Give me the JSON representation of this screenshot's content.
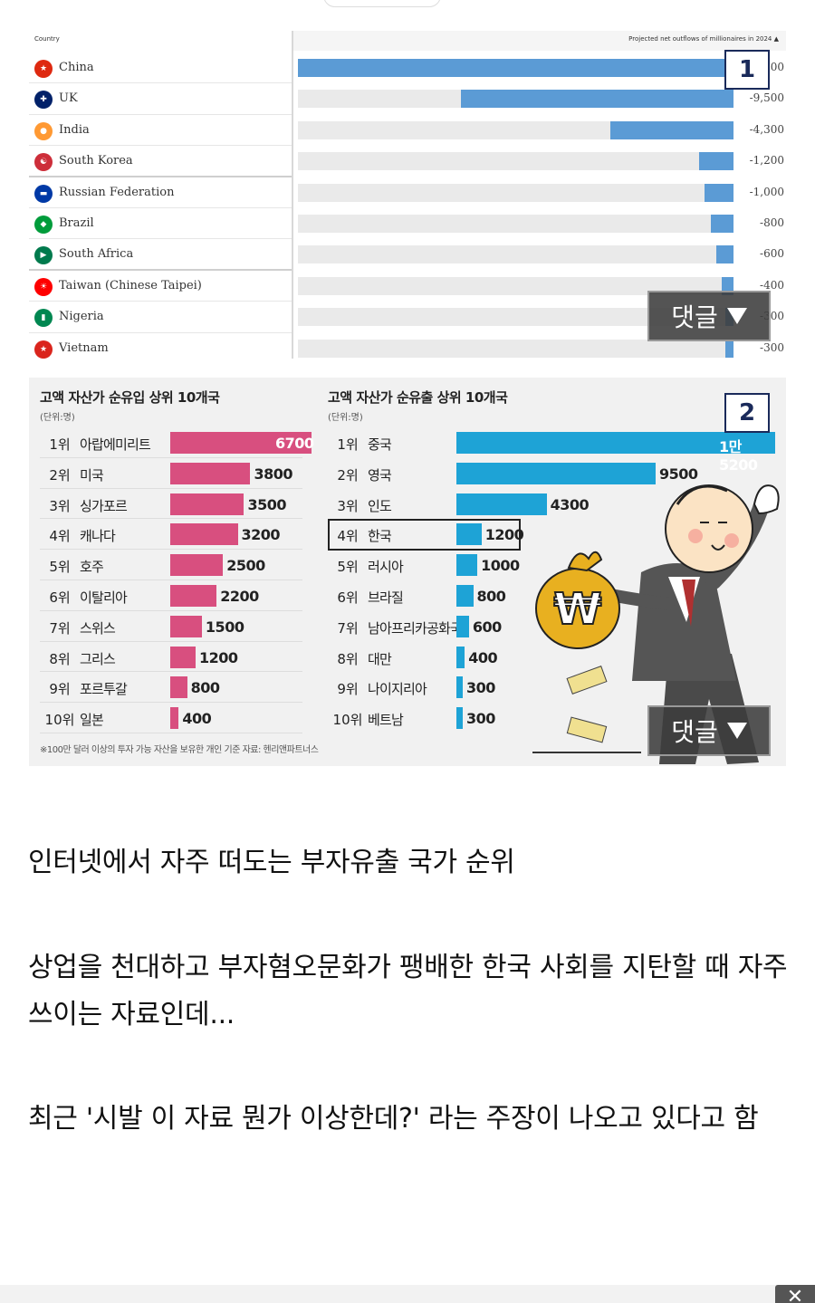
{
  "chart1": {
    "header_country": "Country",
    "header_metric": "Projected net outflows of millionaires in 2024",
    "rows": [
      {
        "country": "China",
        "value": -15200,
        "label": "-15,200",
        "flag_color": "#de2910",
        "flag_glyph": "★"
      },
      {
        "country": "UK",
        "value": -9500,
        "label": "-9,500",
        "flag_color": "#012169",
        "flag_glyph": "✚"
      },
      {
        "country": "India",
        "value": -4300,
        "label": "-4,300",
        "flag_color": "#ff9933",
        "flag_glyph": "●"
      },
      {
        "country": "South Korea",
        "value": -1200,
        "label": "-1,200",
        "flag_color": "#cd2e3a",
        "flag_glyph": "☯"
      },
      {
        "country": "Russian Federation",
        "value": -1000,
        "label": "-1,000",
        "flag_color": "#0039a6",
        "flag_glyph": "▬"
      },
      {
        "country": "Brazil",
        "value": -800,
        "label": "-800",
        "flag_color": "#009c3b",
        "flag_glyph": "◆"
      },
      {
        "country": "South Africa",
        "value": -600,
        "label": "-600",
        "flag_color": "#007a4d",
        "flag_glyph": "▶"
      },
      {
        "country": "Taiwan (Chinese Taipei)",
        "value": -400,
        "label": "-400",
        "flag_color": "#fe0000",
        "flag_glyph": "☀"
      },
      {
        "country": "Nigeria",
        "value": -300,
        "label": "-300",
        "flag_color": "#008751",
        "flag_glyph": "▮"
      },
      {
        "country": "Vietnam",
        "value": -300,
        "label": "-300",
        "flag_color": "#da251d",
        "flag_glyph": "★"
      }
    ]
  },
  "badges": {
    "first": "1",
    "second": "2"
  },
  "comment_button": {
    "label": "댓글"
  },
  "chart2": {
    "inflow_title": "고액 자산가 순유입 상위 10개국",
    "outflow_title": "고액 자산가 순유출 상위 10개국",
    "unit": "(단위:명)",
    "inflow": [
      {
        "rank": "1위",
        "country": "아랍에미리트",
        "value": 6700
      },
      {
        "rank": "2위",
        "country": "미국",
        "value": 3800
      },
      {
        "rank": "3위",
        "country": "싱가포르",
        "value": 3500
      },
      {
        "rank": "4위",
        "country": "캐나다",
        "value": 3200
      },
      {
        "rank": "5위",
        "country": "호주",
        "value": 2500
      },
      {
        "rank": "6위",
        "country": "이탈리아",
        "value": 2200
      },
      {
        "rank": "7위",
        "country": "스위스",
        "value": 1500
      },
      {
        "rank": "8위",
        "country": "그리스",
        "value": 1200
      },
      {
        "rank": "9위",
        "country": "포르투갈",
        "value": 800
      },
      {
        "rank": "10위",
        "country": "일본",
        "value": 400
      }
    ],
    "outflow": [
      {
        "rank": "1위",
        "country": "중국",
        "value": 15200,
        "label": "1만5200"
      },
      {
        "rank": "2위",
        "country": "영국",
        "value": 9500,
        "label": "9500"
      },
      {
        "rank": "3위",
        "country": "인도",
        "value": 4300,
        "label": "4300"
      },
      {
        "rank": "4위",
        "country": "한국",
        "value": 1200,
        "label": "1200",
        "highlight": true
      },
      {
        "rank": "5위",
        "country": "러시아",
        "value": 1000,
        "label": "1000"
      },
      {
        "rank": "6위",
        "country": "브라질",
        "value": 800,
        "label": "800"
      },
      {
        "rank": "7위",
        "country": "남아프리카공화국",
        "value": 600,
        "label": "600"
      },
      {
        "rank": "8위",
        "country": "대만",
        "value": 400,
        "label": "400"
      },
      {
        "rank": "9위",
        "country": "나이지리아",
        "value": 300,
        "label": "300"
      },
      {
        "rank": "10위",
        "country": "베트남",
        "value": 300,
        "label": "300"
      }
    ],
    "footnote": "※100만 달러 이상의 투자 가능 자산을 보유한 개인 기준     자료: 헨리앤파트너스",
    "colors": {
      "inflow": "#d84f7f",
      "outflow": "#1ea3d6"
    }
  },
  "article": {
    "p1": "인터넷에서 자주 떠도는 부자유출 국가 순위",
    "p2": "상업을 천대하고 부자혐오문화가 팽배한 한국 사회를 지탄할 때 자주 쓰이는 자료인데...",
    "p3": "최근 '시발 이 자료 뭔가 이상한데?' 라는 주장이 나오고 있다고 함"
  },
  "close_glyph": "✕"
}
